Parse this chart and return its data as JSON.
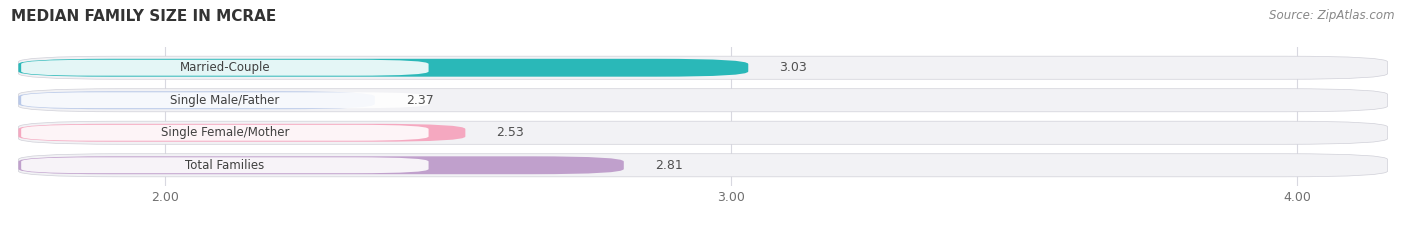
{
  "title": "MEDIAN FAMILY SIZE IN MCRAE",
  "source": "Source: ZipAtlas.com",
  "categories": [
    "Married-Couple",
    "Single Male/Father",
    "Single Female/Mother",
    "Total Families"
  ],
  "values": [
    3.03,
    2.37,
    2.53,
    2.81
  ],
  "bar_colors": [
    "#2ab8b8",
    "#b8c8e8",
    "#f5a8c0",
    "#c0a0cc"
  ],
  "xlim_min": 1.72,
  "xlim_max": 4.18,
  "xticks": [
    2.0,
    3.0,
    4.0
  ],
  "bg_color": "#ffffff",
  "row_bg_color": "#f0f0f5",
  "bar_bg_color": "#ebebeb",
  "grid_color": "#d8d8e0",
  "title_fontsize": 11,
  "label_fontsize": 8.5,
  "value_fontsize": 9,
  "source_fontsize": 8.5,
  "tick_fontsize": 9
}
